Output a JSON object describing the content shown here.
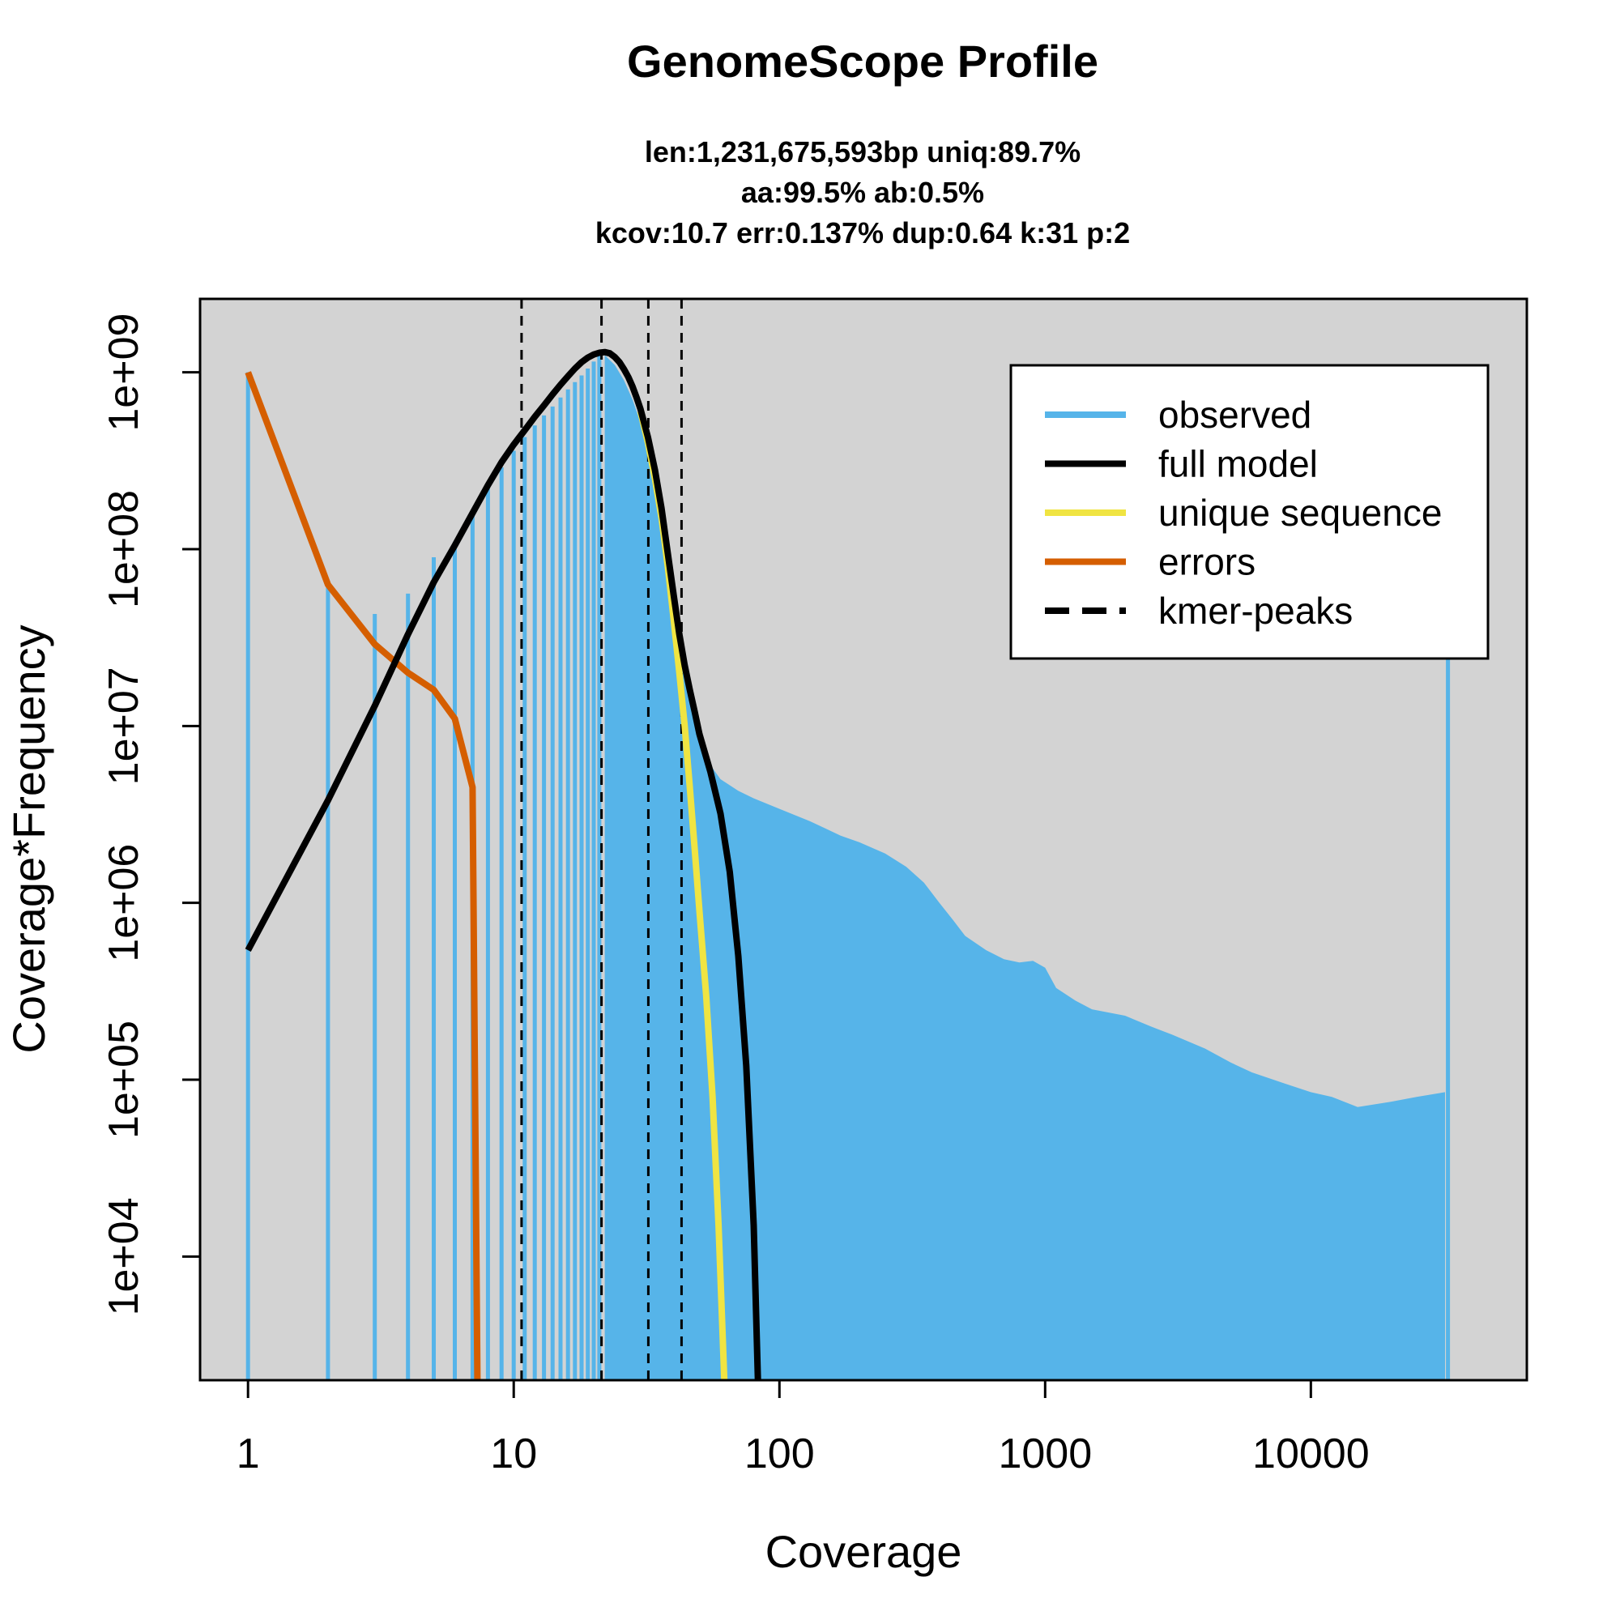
{
  "chart_data": {
    "type": "line",
    "title": "GenomeScope Profile",
    "subtitle_lines": [
      "len:1,231,675,593bp uniq:89.7%",
      "aa:99.5% ab:0.5%",
      "kcov:10.7 err:0.137%  dup:0.64  k:31 p:2"
    ],
    "xlabel": "Coverage",
    "ylabel": "Coverage*Frequency",
    "x_scale": "log",
    "y_scale": "log",
    "xlim": [
      0.66,
      65000
    ],
    "ylim": [
      2000,
      2600000000
    ],
    "x_ticks": [
      {
        "value": 1,
        "label": "1"
      },
      {
        "value": 10,
        "label": "10"
      },
      {
        "value": 100,
        "label": "100"
      },
      {
        "value": 1000,
        "label": "1000"
      },
      {
        "value": 10000,
        "label": "10000"
      }
    ],
    "y_ticks": [
      {
        "value": 10000,
        "label": "1e+04"
      },
      {
        "value": 100000,
        "label": "1e+05"
      },
      {
        "value": 1000000,
        "label": "1e+06"
      },
      {
        "value": 10000000,
        "label": "1e+07"
      },
      {
        "value": 100000000,
        "label": "1e+08"
      },
      {
        "value": 1000000000,
        "label": "1e+09"
      }
    ],
    "background_color": "#d3d3d3",
    "grid": false,
    "legend_position": "top-right",
    "legend": [
      {
        "label": "observed",
        "color": "#56b4e9",
        "style": "solid"
      },
      {
        "label": "full model",
        "color": "#000000",
        "style": "solid"
      },
      {
        "label": "unique sequence",
        "color": "#f0e442",
        "style": "solid"
      },
      {
        "label": "errors",
        "color": "#d55e00",
        "style": "solid"
      },
      {
        "label": "kmer-peaks",
        "color": "#000000",
        "style": "dashed"
      }
    ],
    "kmer_peaks": [
      10.7,
      21.4,
      32.1,
      42.8
    ],
    "observed": {
      "color": "#56b4e9",
      "low_bars": [
        [
          1,
          1000000000
        ],
        [
          2,
          63000000
        ],
        [
          3,
          43000000
        ],
        [
          4,
          56000000
        ],
        [
          5,
          90000000
        ],
        [
          6,
          110000000
        ],
        [
          7,
          160000000
        ],
        [
          8,
          220000000
        ],
        [
          9,
          290000000
        ],
        [
          10,
          360000000
        ],
        [
          11,
          430000000
        ],
        [
          12,
          500000000
        ],
        [
          13,
          570000000
        ],
        [
          14,
          640000000
        ],
        [
          15,
          720000000
        ],
        [
          16,
          800000000
        ],
        [
          17,
          880000000
        ],
        [
          18,
          960000000
        ],
        [
          19,
          1050000000
        ],
        [
          20,
          1150000000
        ],
        [
          21,
          1250000000
        ]
      ],
      "envelope": [
        [
          22,
          1250000000
        ],
        [
          24,
          1100000000
        ],
        [
          26,
          900000000
        ],
        [
          28,
          700000000
        ],
        [
          30,
          520000000
        ],
        [
          32,
          380000000
        ],
        [
          34,
          250000000
        ],
        [
          36,
          160000000
        ],
        [
          38,
          100000000
        ],
        [
          40,
          60000000
        ],
        [
          42,
          35000000
        ],
        [
          44,
          22000000
        ],
        [
          46,
          15000000
        ],
        [
          48,
          11000000
        ],
        [
          50,
          8500000
        ],
        [
          55,
          6000000
        ],
        [
          60,
          5000000
        ],
        [
          70,
          4300000
        ],
        [
          80,
          3900000
        ],
        [
          100,
          3400000
        ],
        [
          130,
          2900000
        ],
        [
          170,
          2400000
        ],
        [
          200,
          2200000
        ],
        [
          250,
          1900000
        ],
        [
          300,
          1600000
        ],
        [
          350,
          1300000
        ],
        [
          400,
          1000000
        ],
        [
          450,
          800000
        ],
        [
          500,
          650000
        ],
        [
          600,
          540000
        ],
        [
          700,
          480000
        ],
        [
          800,
          460000
        ],
        [
          900,
          470000
        ],
        [
          1000,
          430000
        ],
        [
          1100,
          330000
        ],
        [
          1300,
          280000
        ],
        [
          1500,
          250000
        ],
        [
          2000,
          230000
        ],
        [
          2500,
          200000
        ],
        [
          3000,
          180000
        ],
        [
          4000,
          150000
        ],
        [
          5000,
          125000
        ],
        [
          6000,
          110000
        ],
        [
          8000,
          95000
        ],
        [
          10000,
          85000
        ],
        [
          12000,
          80000
        ],
        [
          15000,
          70000
        ],
        [
          20000,
          75000
        ],
        [
          25000,
          80000
        ],
        [
          32000,
          85000
        ]
      ],
      "spike": [
        32800,
        28000000
      ]
    },
    "series": [
      {
        "name": "full model",
        "color": "#000000",
        "points": [
          [
            1,
            540000
          ],
          [
            2,
            3800000
          ],
          [
            3,
            13000000
          ],
          [
            4,
            33000000
          ],
          [
            5,
            65000000
          ],
          [
            6,
            105000000
          ],
          [
            7,
            160000000
          ],
          [
            8,
            230000000
          ],
          [
            9,
            310000000
          ],
          [
            10,
            390000000
          ],
          [
            11,
            470000000
          ],
          [
            12,
            560000000
          ],
          [
            13,
            650000000
          ],
          [
            14,
            750000000
          ],
          [
            15,
            850000000
          ],
          [
            16,
            950000000
          ],
          [
            17,
            1050000000
          ],
          [
            18,
            1140000000
          ],
          [
            19,
            1210000000
          ],
          [
            20,
            1260000000
          ],
          [
            21,
            1290000000
          ],
          [
            22,
            1300000000
          ],
          [
            23,
            1280000000
          ],
          [
            24,
            1220000000
          ],
          [
            25,
            1140000000
          ],
          [
            26,
            1040000000
          ],
          [
            27,
            940000000
          ],
          [
            28,
            830000000
          ],
          [
            29,
            720000000
          ],
          [
            30,
            620000000
          ],
          [
            32,
            430000000
          ],
          [
            34,
            280000000
          ],
          [
            36,
            170000000
          ],
          [
            38,
            95000000
          ],
          [
            40,
            55000000
          ],
          [
            42,
            33000000
          ],
          [
            44,
            22000000
          ],
          [
            46,
            16000000
          ],
          [
            48,
            12000000
          ],
          [
            50,
            9000000
          ],
          [
            55,
            5500000
          ],
          [
            60,
            3200000
          ],
          [
            65,
            1500000
          ],
          [
            70,
            500000
          ],
          [
            75,
            120000
          ],
          [
            80,
            15000
          ],
          [
            83,
            2000
          ]
        ]
      },
      {
        "name": "unique sequence",
        "color": "#f0e442",
        "points": [
          [
            30,
            600000000
          ],
          [
            32,
            400000000
          ],
          [
            34,
            250000000
          ],
          [
            36,
            150000000
          ],
          [
            38,
            80000000
          ],
          [
            40,
            40000000
          ],
          [
            42,
            20000000
          ],
          [
            44,
            10000000
          ],
          [
            46,
            4500000
          ],
          [
            48,
            2000000
          ],
          [
            50,
            900000
          ],
          [
            53,
            300000
          ],
          [
            56,
            80000
          ],
          [
            59,
            15000
          ],
          [
            62,
            2000
          ]
        ]
      },
      {
        "name": "errors",
        "color": "#d55e00",
        "points": [
          [
            1,
            1000000000
          ],
          [
            2,
            63000000
          ],
          [
            3,
            29000000
          ],
          [
            4,
            20000000
          ],
          [
            5,
            16000000
          ],
          [
            6,
            11000000
          ],
          [
            7,
            4500000
          ],
          [
            7.3,
            2000
          ]
        ]
      }
    ]
  }
}
